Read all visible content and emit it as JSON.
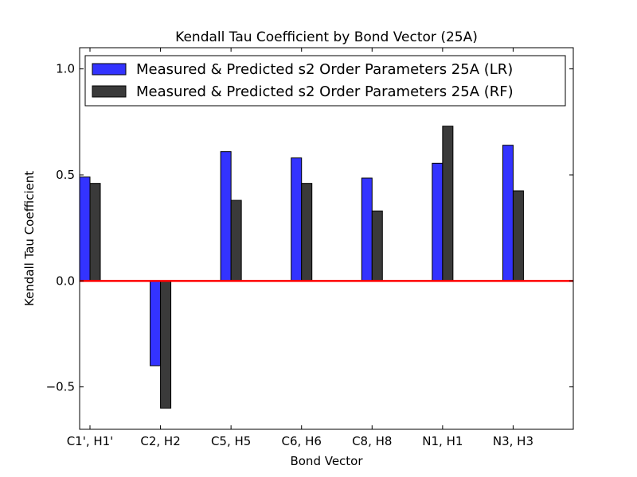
{
  "chart_data": {
    "type": "bar",
    "title": "Kendall Tau Coefficient by Bond Vector (25A)",
    "xlabel": "Bond Vector",
    "ylabel": "Kendall Tau Coefficient",
    "categories": [
      "C1', H1'",
      "C2, H2",
      "C5, H5",
      "C6, H6",
      "C8, H8",
      "N1, H1",
      "N3, H3"
    ],
    "series": [
      {
        "name": "Measured & Predicted s2 Order Parameters 25A (LR)",
        "color": "#3333ff",
        "values": [
          0.49,
          -0.4,
          0.61,
          0.58,
          0.485,
          0.555,
          0.64
        ]
      },
      {
        "name": "Measured & Predicted s2 Order Parameters 25A (RF)",
        "color": "#3a3a3a",
        "values": [
          0.46,
          -0.6,
          0.38,
          0.46,
          0.33,
          0.73,
          0.425
        ]
      }
    ],
    "ylim": [
      -0.7,
      1.1
    ],
    "yticks": [
      -0.5,
      0.0,
      0.5,
      1.0
    ],
    "ytick_labels": [
      "−0.5",
      "0.0",
      "0.5",
      "1.0"
    ],
    "reference_line": {
      "y": 0.0,
      "color": "#ff0000"
    },
    "legend_position": "top-right",
    "grid": false
  }
}
